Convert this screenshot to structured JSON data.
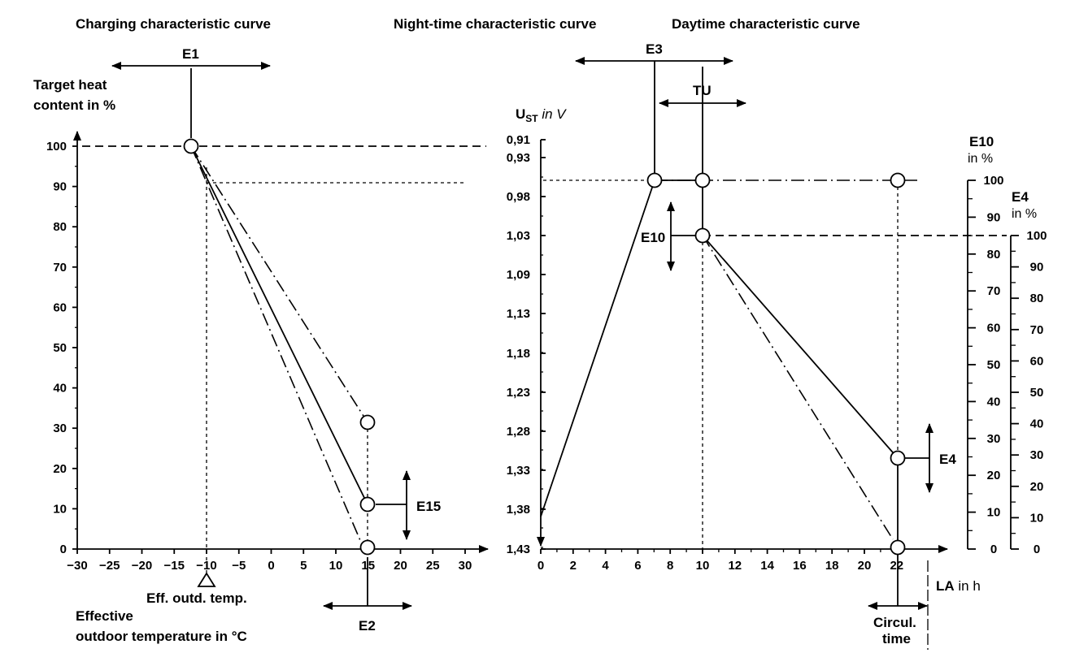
{
  "titles": {
    "charging": "Charging characteristic curve",
    "night": "Night-time characteristic curve",
    "day": "Daytime characteristic curve"
  },
  "left_chart": {
    "ylabel_line1": "Target heat",
    "ylabel_line2": "content in %",
    "xlabel_line1": "Effective",
    "xlabel_line2": "outdoor temperature in °C",
    "eff_temp_label": "Eff. outd. temp.",
    "y_ticks": [
      "0",
      "10",
      "20",
      "30",
      "40",
      "50",
      "60",
      "70",
      "80",
      "90",
      "100"
    ],
    "x_ticks": [
      "−30",
      "−25",
      "−20",
      "−15",
      "−10",
      "−5",
      "0",
      "5",
      "10",
      "15",
      "20",
      "25",
      "30"
    ],
    "labels": {
      "e1": "E1",
      "e2": "E2",
      "e15": "E15"
    }
  },
  "right_chart": {
    "ylabel_main": "U",
    "ylabel_sub": "ST",
    "ylabel_unit": " in V",
    "y_ticks": [
      "0,91",
      "0,93",
      "0,98",
      "1,03",
      "1,09",
      "1,13",
      "1,18",
      "1,23",
      "1,28",
      "1,33",
      "1,38",
      "1,43"
    ],
    "x_ticks": [
      "0",
      "2",
      "4",
      "6",
      "8",
      "10",
      "12",
      "14",
      "16",
      "18",
      "20",
      "22"
    ],
    "xlabel_bold": "LA",
    "xlabel_rest": " in h",
    "circ_line1": "Circul.",
    "circ_line2": "time",
    "labels": {
      "e3": "E3",
      "tu": "TU",
      "e10": "E10",
      "e4": "E4"
    },
    "e10_axis_title1": "E10",
    "e10_axis_title2": "in %",
    "e10_ticks": [
      "0",
      "10",
      "20",
      "30",
      "40",
      "50",
      "60",
      "70",
      "80",
      "90",
      "100"
    ],
    "e4_axis_title1": "E4",
    "e4_axis_title2": "in %",
    "e4_ticks": [
      "0",
      "10",
      "20",
      "30",
      "40",
      "50",
      "60",
      "70",
      "80",
      "90",
      "100"
    ]
  }
}
